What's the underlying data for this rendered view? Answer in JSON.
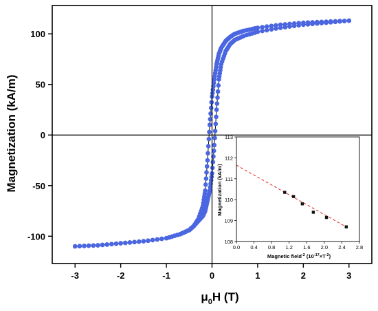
{
  "chart_data": [
    {
      "type": "scatter",
      "xlabel_main": "μ",
      "xlabel_sub": "0",
      "xlabel_rest": "H (T)",
      "ylabel": "Magnetization (kA/m)",
      "xlim": [
        -3.5,
        3.5
      ],
      "ylim": [
        -127,
        128
      ],
      "xticks": [
        -3,
        -2,
        -1,
        0,
        1,
        2,
        3
      ],
      "yticks": [
        -100,
        -50,
        0,
        50,
        100
      ],
      "grid": false,
      "series": [
        {
          "marker_color": "#4a66e0",
          "line_color": "#000000",
          "branches": [
            {
              "x": [
                3.0,
                2.5,
                2.0,
                1.5,
                1.0,
                0.7,
                0.5,
                0.4,
                0.3,
                0.2,
                0.15,
                0.1,
                0.05,
                0.0,
                -0.05,
                -0.1,
                -0.15,
                -0.2,
                -0.3,
                -0.4,
                -0.5,
                -0.7,
                -1.0,
                -1.5,
                -2.0,
                -2.5,
                -3.0
              ],
              "y": [
                113,
                112,
                111,
                109,
                106,
                103,
                100,
                97,
                93,
                86,
                80,
                70,
                55,
                38,
                10,
                -25,
                -55,
                -70,
                -83,
                -90,
                -94,
                -98,
                -102,
                -105,
                -107,
                -109,
                -110
              ]
            },
            {
              "x": [
                -3.0,
                -2.5,
                -2.0,
                -1.5,
                -1.0,
                -0.7,
                -0.5,
                -0.4,
                -0.3,
                -0.2,
                -0.15,
                -0.1,
                -0.05,
                0.0,
                0.05,
                0.1,
                0.15,
                0.2,
                0.3,
                0.4,
                0.5,
                0.7,
                1.0,
                1.5,
                2.0,
                2.5,
                3.0
              ],
              "y": [
                -110,
                -109,
                -107,
                -105,
                -102,
                -98,
                -94,
                -90,
                -85,
                -80,
                -75,
                -65,
                -55,
                -38,
                -10,
                25,
                55,
                70,
                83,
                90,
                94,
                98,
                102,
                106,
                109,
                111,
                113
              ]
            }
          ]
        }
      ]
    },
    {
      "type": "scatter",
      "xlabel_main": "Magnetic field",
      "xlabel_sup1": "-2",
      "xlabel_mid": " (10",
      "xlabel_sup2": "-17",
      "xlabel_mid2": "×T",
      "xlabel_sup3": "-2",
      "xlabel_end": ")",
      "ylabel": "Magnetization (kA/m)",
      "xlim": [
        0.0,
        2.8
      ],
      "ylim": [
        108,
        113
      ],
      "xticks": [
        "0.0",
        "0.4",
        "0.8",
        "1.2",
        "1.6",
        "2.0",
        "2.4",
        "2.8"
      ],
      "yticks": [
        "108",
        "109",
        "110",
        "111",
        "112",
        "113"
      ],
      "points": {
        "x": [
          1.1,
          1.3,
          1.5,
          1.75,
          2.05,
          2.5
        ],
        "y": [
          110.35,
          110.15,
          109.8,
          109.4,
          109.15,
          108.7
        ]
      },
      "fit": {
        "x": [
          0.0,
          2.5
        ],
        "y": [
          111.65,
          108.7
        ],
        "color": "#dd2222"
      },
      "marker_color": "#111111"
    }
  ]
}
